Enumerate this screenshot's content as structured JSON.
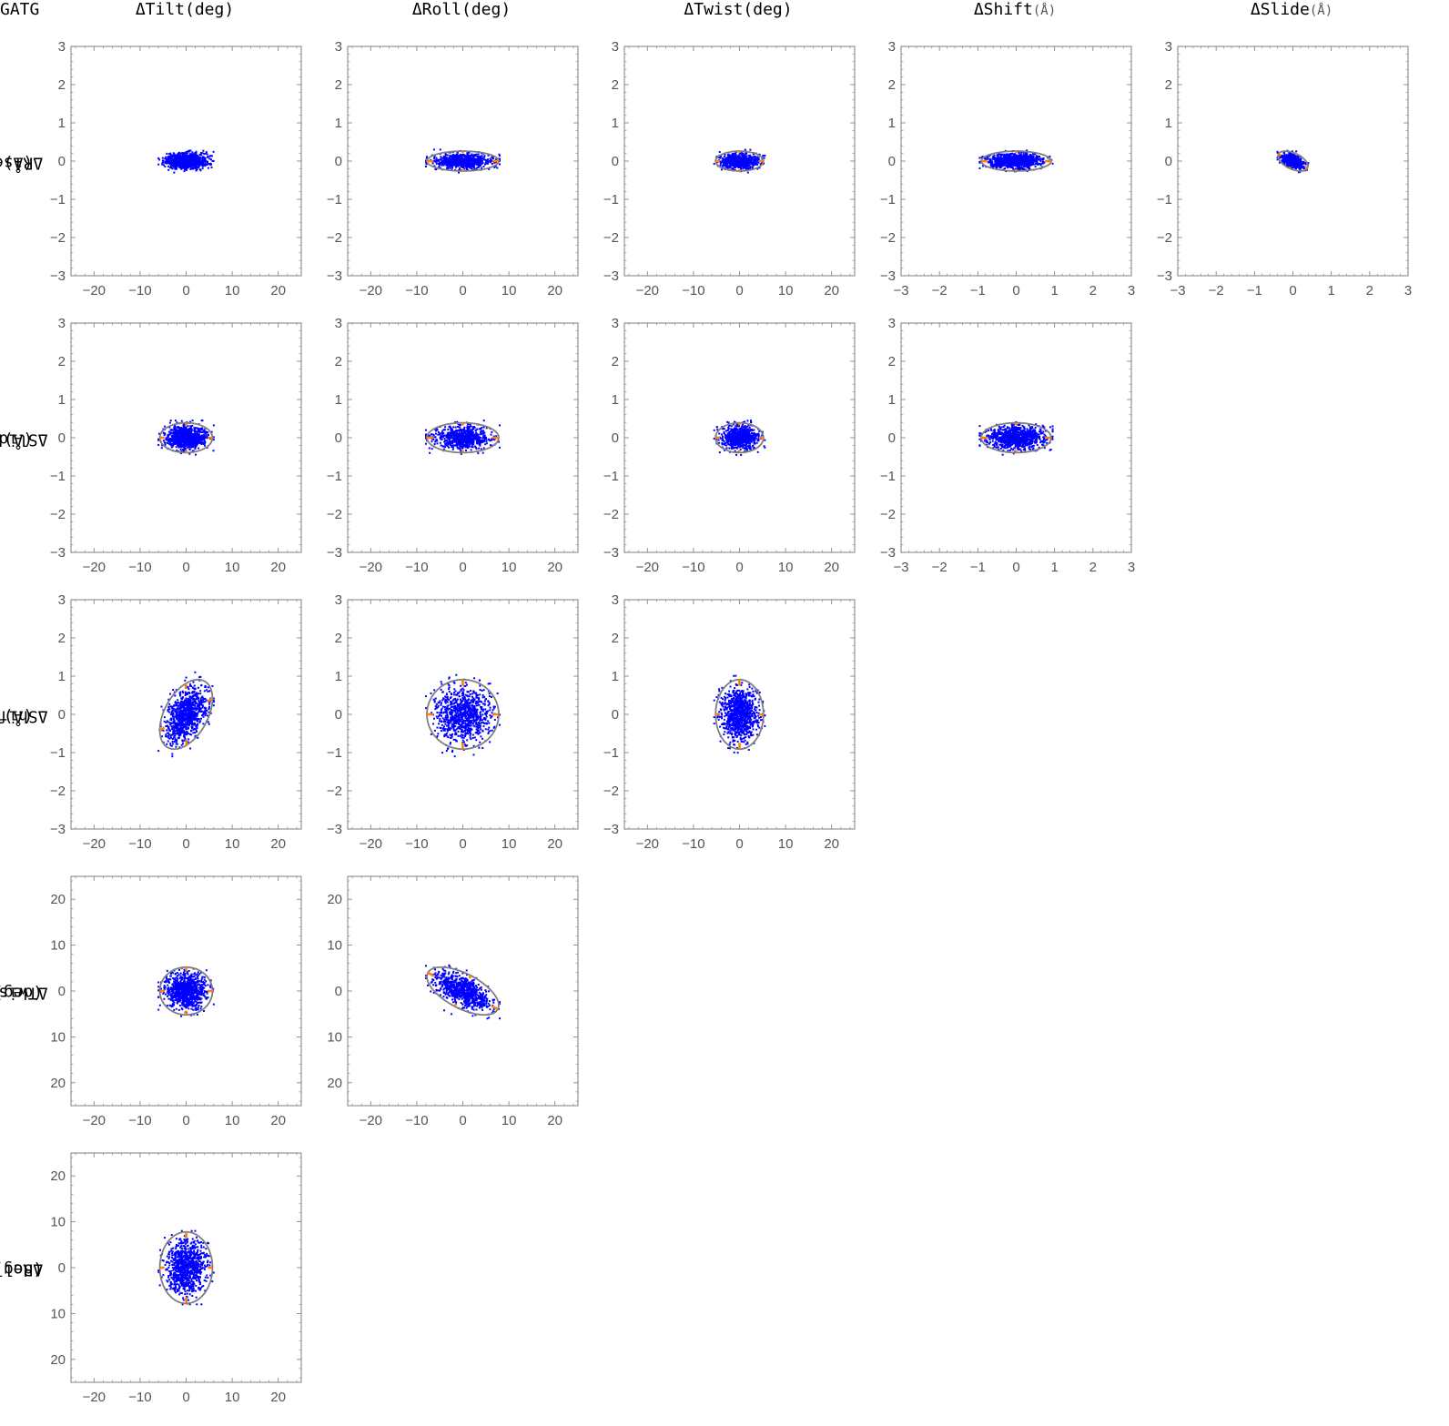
{
  "corner_label": "GATG",
  "columns": [
    {
      "name": "ΔTilt",
      "unit": "(deg)"
    },
    {
      "name": "ΔRoll",
      "unit": "(deg)"
    },
    {
      "name": "ΔTwist",
      "unit": "(deg)"
    },
    {
      "name": "ΔShift",
      "unit": "(Å)"
    },
    {
      "name": "ΔSlide",
      "unit": "(Å)"
    }
  ],
  "rows": [
    {
      "name": "ΔRise",
      "unit": "(Å)"
    },
    {
      "name": "ΔSlide",
      "unit": "(Å)"
    },
    {
      "name": "ΔShift",
      "unit": "(Å)"
    },
    {
      "name": "ΔTwist",
      "unit": "(deg)"
    },
    {
      "name": "ΔRoll",
      "unit": "(deg)"
    }
  ],
  "colors": {
    "points": "#0000ff",
    "ellipse": "#7f7f7f",
    "axes_marks": "#ff7f0e",
    "frame": "#7f7f7f",
    "tick_labels": "#555555"
  },
  "chart_data": [
    {
      "type": "scatter",
      "row": 0,
      "col": 0,
      "xlim": [
        -25,
        25
      ],
      "ylim": [
        -3,
        3
      ],
      "xticks": [
        -20,
        -10,
        0,
        10,
        20
      ],
      "yticks": [
        -3,
        -2,
        -1,
        0,
        1,
        2,
        3
      ],
      "mean": [
        0,
        0
      ],
      "sd": [
        2.2,
        0.1
      ],
      "rho": 0.0,
      "spread": [
        6,
        0.3
      ],
      "ellipse": false,
      "n": 900
    },
    {
      "type": "scatter",
      "row": 0,
      "col": 1,
      "xlim": [
        -25,
        25
      ],
      "ylim": [
        -3,
        3
      ],
      "xticks": [
        -20,
        -10,
        0,
        10,
        20
      ],
      "yticks": [
        -3,
        -2,
        -1,
        0,
        1,
        2,
        3
      ],
      "mean": [
        0,
        0
      ],
      "sd": [
        3,
        0.1
      ],
      "rho": 0.0,
      "spread": [
        8,
        0.3
      ],
      "ellipse": true,
      "n": 700
    },
    {
      "type": "scatter",
      "row": 0,
      "col": 2,
      "xlim": [
        -25,
        25
      ],
      "ylim": [
        -3,
        3
      ],
      "xticks": [
        -20,
        -10,
        0,
        10,
        20
      ],
      "yticks": [
        -3,
        -2,
        -1,
        0,
        1,
        2,
        3
      ],
      "mean": [
        0,
        0
      ],
      "sd": [
        2,
        0.1
      ],
      "rho": 0.0,
      "spread": [
        5.5,
        0.3
      ],
      "ellipse": true,
      "n": 700
    },
    {
      "type": "scatter",
      "row": 0,
      "col": 3,
      "xlim": [
        -3,
        3
      ],
      "ylim": [
        -3,
        3
      ],
      "xticks": [
        -3,
        -2,
        -1,
        0,
        1,
        2,
        3
      ],
      "yticks": [
        -3,
        -2,
        -1,
        0,
        1,
        2,
        3
      ],
      "mean": [
        0,
        0
      ],
      "sd": [
        0.35,
        0.1
      ],
      "rho": 0.0,
      "spread": [
        0.95,
        0.3
      ],
      "ellipse": true,
      "n": 900
    },
    {
      "type": "scatter",
      "row": 0,
      "col": 4,
      "xlim": [
        -3,
        3
      ],
      "ylim": [
        -3,
        3
      ],
      "xticks": [
        -3,
        -2,
        -1,
        0,
        1,
        2,
        3
      ],
      "yticks": [
        -3,
        -2,
        -1,
        0,
        1,
        2,
        3
      ],
      "mean": [
        0,
        0
      ],
      "sd": [
        0.15,
        0.1
      ],
      "rho": -0.5,
      "spread": [
        0.4,
        0.3
      ],
      "ellipse": true,
      "n": 500
    },
    {
      "type": "scatter",
      "row": 1,
      "col": 0,
      "xlim": [
        -25,
        25
      ],
      "ylim": [
        -3,
        3
      ],
      "xticks": [
        -20,
        -10,
        0,
        10,
        20
      ],
      "yticks": [
        -3,
        -2,
        -1,
        0,
        1,
        2,
        3
      ],
      "mean": [
        0,
        0
      ],
      "sd": [
        2.2,
        0.15
      ],
      "rho": 0.0,
      "spread": [
        6,
        0.45
      ],
      "ellipse": true,
      "n": 900
    },
    {
      "type": "scatter",
      "row": 1,
      "col": 1,
      "xlim": [
        -25,
        25
      ],
      "ylim": [
        -3,
        3
      ],
      "xticks": [
        -20,
        -10,
        0,
        10,
        20
      ],
      "yticks": [
        -3,
        -2,
        -1,
        0,
        1,
        2,
        3
      ],
      "mean": [
        0,
        0
      ],
      "sd": [
        3,
        0.15
      ],
      "rho": 0.0,
      "spread": [
        8,
        0.45
      ],
      "ellipse": true,
      "n": 700
    },
    {
      "type": "scatter",
      "row": 1,
      "col": 2,
      "xlim": [
        -25,
        25
      ],
      "ylim": [
        -3,
        3
      ],
      "xticks": [
        -20,
        -10,
        0,
        10,
        20
      ],
      "yticks": [
        -3,
        -2,
        -1,
        0,
        1,
        2,
        3
      ],
      "mean": [
        0,
        0
      ],
      "sd": [
        2,
        0.15
      ],
      "rho": 0.0,
      "spread": [
        5.5,
        0.45
      ],
      "ellipse": true,
      "n": 700
    },
    {
      "type": "scatter",
      "row": 1,
      "col": 3,
      "xlim": [
        -3,
        3
      ],
      "ylim": [
        -3,
        3
      ],
      "xticks": [
        -3,
        -2,
        -1,
        0,
        1,
        2,
        3
      ],
      "yticks": [
        -3,
        -2,
        -1,
        0,
        1,
        2,
        3
      ],
      "mean": [
        0,
        0
      ],
      "sd": [
        0.35,
        0.15
      ],
      "rho": 0.0,
      "spread": [
        0.95,
        0.45
      ],
      "ellipse": true,
      "n": 900
    },
    {
      "type": "scatter",
      "row": 2,
      "col": 0,
      "xlim": [
        -25,
        25
      ],
      "ylim": [
        -3,
        3
      ],
      "xticks": [
        -20,
        -10,
        0,
        10,
        20
      ],
      "yticks": [
        -3,
        -2,
        -1,
        0,
        1,
        2,
        3
      ],
      "mean": [
        0,
        0
      ],
      "sd": [
        2.2,
        0.35
      ],
      "rho": 0.45,
      "spread": [
        6,
        1.1
      ],
      "ellipse": true,
      "n": 900
    },
    {
      "type": "scatter",
      "row": 2,
      "col": 1,
      "xlim": [
        -25,
        25
      ],
      "ylim": [
        -3,
        3
      ],
      "xticks": [
        -20,
        -10,
        0,
        10,
        20
      ],
      "yticks": [
        -3,
        -2,
        -1,
        0,
        1,
        2,
        3
      ],
      "mean": [
        0,
        0
      ],
      "sd": [
        3,
        0.35
      ],
      "rho": 0.0,
      "spread": [
        8,
        1.1
      ],
      "ellipse": true,
      "n": 900
    },
    {
      "type": "scatter",
      "row": 2,
      "col": 2,
      "xlim": [
        -25,
        25
      ],
      "ylim": [
        -3,
        3
      ],
      "xticks": [
        -20,
        -10,
        0,
        10,
        20
      ],
      "yticks": [
        -3,
        -2,
        -1,
        0,
        1,
        2,
        3
      ],
      "mean": [
        0,
        0
      ],
      "sd": [
        2,
        0.35
      ],
      "rho": 0.0,
      "spread": [
        5.5,
        1.1
      ],
      "ellipse": true,
      "n": 900
    },
    {
      "type": "scatter",
      "row": 3,
      "col": 0,
      "xlim": [
        -25,
        25
      ],
      "ylim": [
        -25,
        25
      ],
      "xticks": [
        -20,
        -10,
        0,
        10,
        20
      ],
      "yticks": [
        -20,
        -10,
        0,
        10,
        20
      ],
      "ytick_labels": [
        "20",
        "10",
        "0",
        "10",
        "20"
      ],
      "mean": [
        0,
        0
      ],
      "sd": [
        2.2,
        2
      ],
      "rho": 0.0,
      "spread": [
        6,
        5.5
      ],
      "ellipse": true,
      "n": 900
    },
    {
      "type": "scatter",
      "row": 3,
      "col": 1,
      "xlim": [
        -25,
        25
      ],
      "ylim": [
        -25,
        25
      ],
      "xticks": [
        -20,
        -10,
        0,
        10,
        20
      ],
      "yticks": [
        -20,
        -10,
        0,
        10,
        20
      ],
      "ytick_labels": [
        "20",
        "10",
        "0",
        "10",
        "20"
      ],
      "mean": [
        0,
        0
      ],
      "sd": [
        3,
        2
      ],
      "rho": -0.6,
      "spread": [
        8,
        6
      ],
      "ellipse": true,
      "n": 800
    },
    {
      "type": "scatter",
      "row": 4,
      "col": 0,
      "xlim": [
        -25,
        25
      ],
      "ylim": [
        -25,
        25
      ],
      "xticks": [
        -20,
        -10,
        0,
        10,
        20
      ],
      "yticks": [
        -20,
        -10,
        0,
        10,
        20
      ],
      "ytick_labels": [
        "20",
        "10",
        "0",
        "10",
        "20"
      ],
      "mean": [
        0,
        0
      ],
      "sd": [
        2.2,
        3
      ],
      "rho": 0.0,
      "spread": [
        6,
        8
      ],
      "ellipse": true,
      "n": 900
    }
  ]
}
